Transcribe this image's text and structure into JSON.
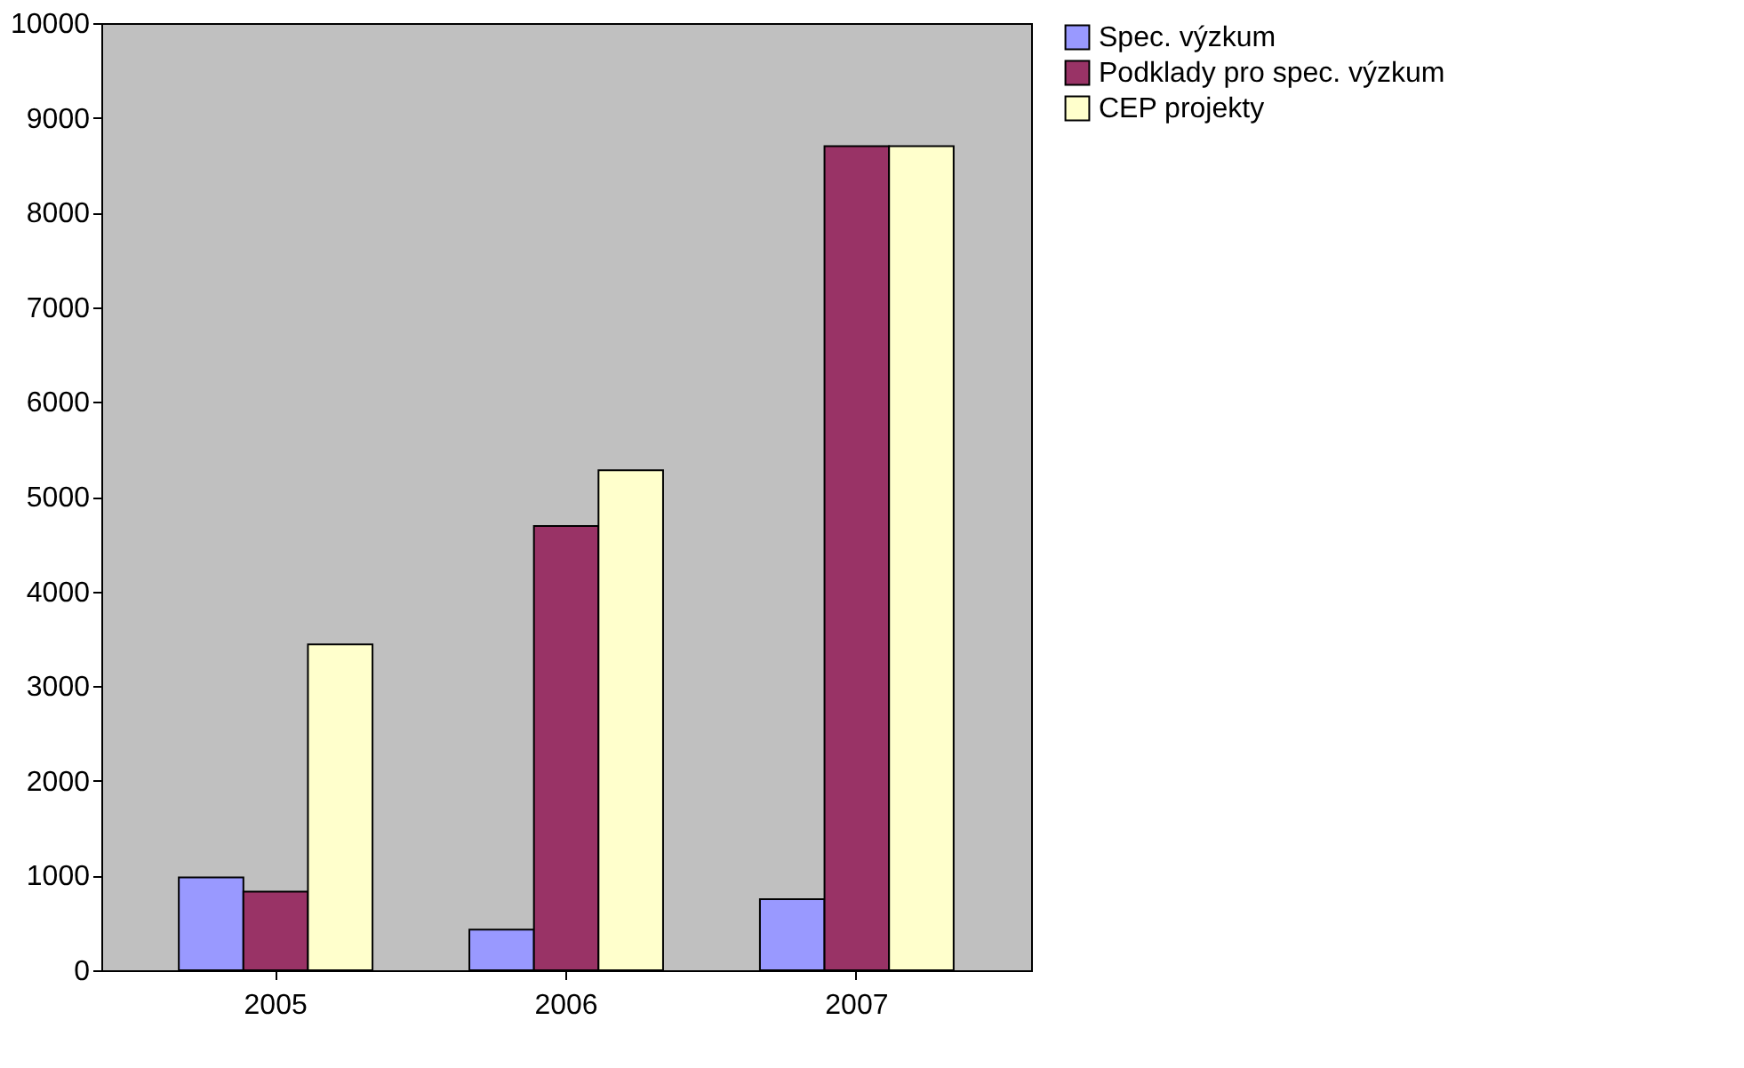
{
  "chart_data": {
    "type": "bar",
    "categories": [
      "2005",
      "2006",
      "2007"
    ],
    "series": [
      {
        "name": "Spec. výzkum",
        "color": "#9999ff",
        "values": [
          980,
          430,
          750
        ]
      },
      {
        "name": "Podklady pro spec. výzkum",
        "color": "#993366",
        "values": [
          830,
          4690,
          8700
        ]
      },
      {
        "name": "CEP projekty",
        "color": "#ffffcc",
        "values": [
          3440,
          5280,
          8700
        ]
      }
    ],
    "ylim": [
      0,
      10000
    ],
    "yticks": [
      0,
      1000,
      2000,
      3000,
      4000,
      5000,
      6000,
      7000,
      8000,
      9000,
      10000
    ],
    "grid": false,
    "legend": "right"
  }
}
